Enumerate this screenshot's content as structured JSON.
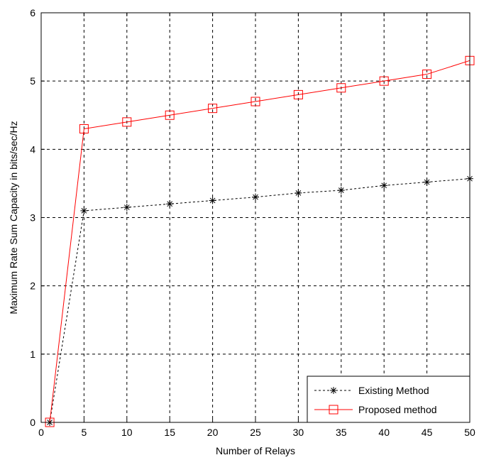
{
  "chart_data": {
    "type": "line",
    "title": "",
    "xlabel": "Number of Relays",
    "ylabel": "Maximum Rate Sum Capacity in bits/sec/Hz",
    "xlim": [
      0,
      50
    ],
    "ylim": [
      0,
      6
    ],
    "x_ticks": [
      0,
      5,
      10,
      15,
      20,
      25,
      30,
      35,
      40,
      45,
      50
    ],
    "y_ticks": [
      0,
      1,
      2,
      3,
      4,
      5,
      6
    ],
    "grid": true,
    "legend_position": "bottom-right",
    "series": [
      {
        "name": "Existing Method",
        "color": "#000000",
        "line_style": "dashed",
        "marker": "star",
        "x": [
          1,
          5,
          10,
          15,
          20,
          25,
          30,
          35,
          40,
          45,
          50
        ],
        "y": [
          0,
          3.1,
          3.15,
          3.2,
          3.25,
          3.3,
          3.36,
          3.4,
          3.47,
          3.52,
          3.57
        ]
      },
      {
        "name": "Proposed method",
        "color": "#ff0000",
        "line_style": "solid",
        "marker": "square",
        "x": [
          1,
          5,
          10,
          15,
          20,
          25,
          30,
          35,
          40,
          45,
          50
        ],
        "y": [
          0,
          4.3,
          4.4,
          4.5,
          4.6,
          4.7,
          4.8,
          4.9,
          5.0,
          5.1,
          5.3
        ]
      }
    ]
  }
}
